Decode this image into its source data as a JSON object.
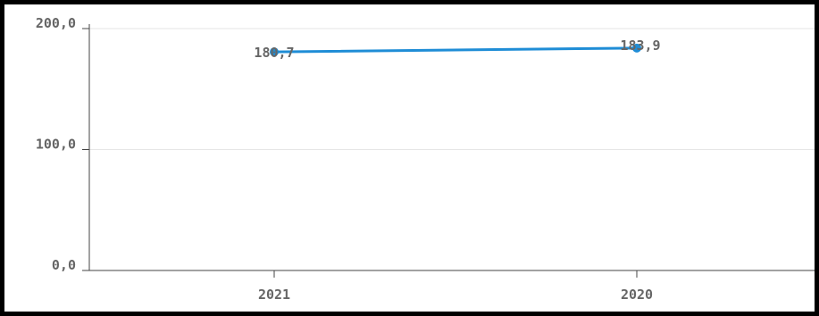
{
  "chart_data": {
    "type": "line",
    "categories": [
      "2021",
      "2020"
    ],
    "series": [
      {
        "values": [
          180.7,
          183.9
        ],
        "color": "#1f8dd6"
      }
    ],
    "data_labels": [
      "180,7",
      "183,9"
    ],
    "y_ticks": [
      0,
      100,
      200
    ],
    "y_tick_labels": [
      "0,0",
      "100,0",
      "200,0"
    ],
    "ylim": [
      0,
      200
    ],
    "grid": true,
    "legend": "none",
    "title": "",
    "xlabel": "",
    "ylabel": ""
  }
}
